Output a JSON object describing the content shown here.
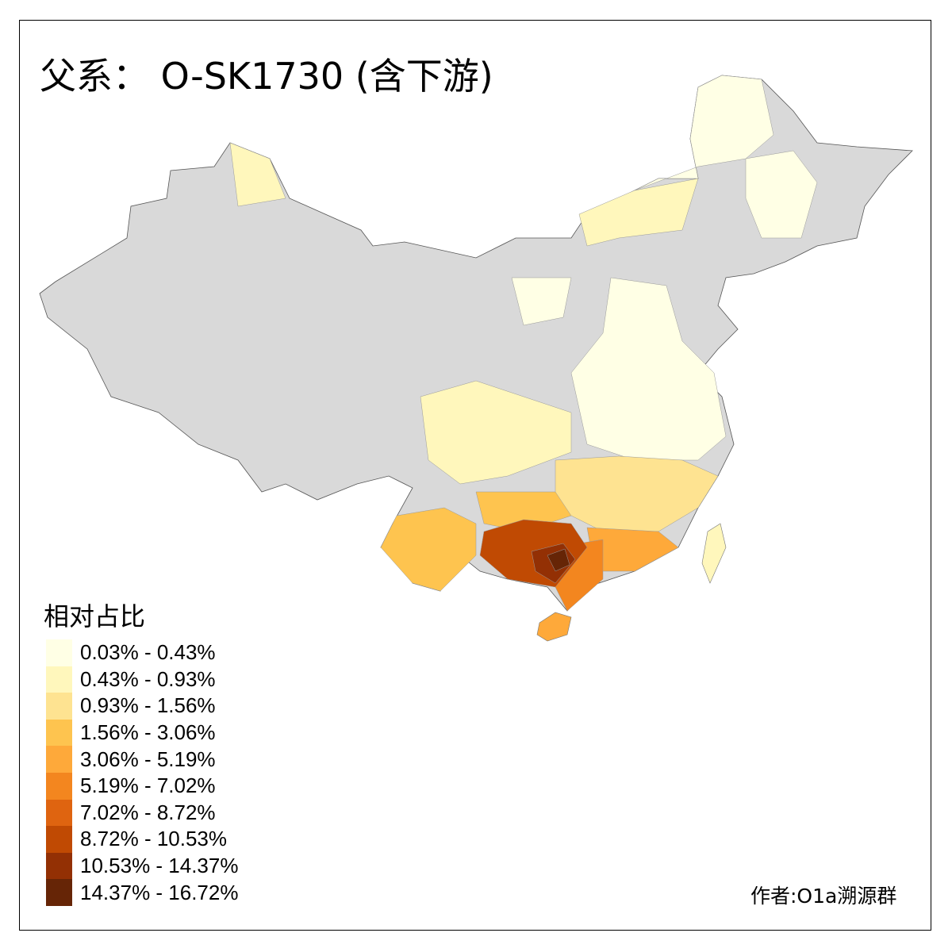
{
  "title": "父系： O-SK1730 (含下游)",
  "legend": {
    "title": "相对占比",
    "items": [
      {
        "label": "0.03% - 0.43%",
        "color": "#FFFFE5"
      },
      {
        "label": "0.43% - 0.93%",
        "color": "#FFF7BC"
      },
      {
        "label": "0.93% - 1.56%",
        "color": "#FEE391"
      },
      {
        "label": "1.56% - 3.06%",
        "color": "#FEC44F"
      },
      {
        "label": "3.06% - 5.19%",
        "color": "#FEA93A"
      },
      {
        "label": "5.19% - 7.02%",
        "color": "#F3861F"
      },
      {
        "label": "7.02% - 8.72%",
        "color": "#DF6410"
      },
      {
        "label": "8.72% - 10.53%",
        "color": "#C04A03"
      },
      {
        "label": "10.53% - 14.37%",
        "color": "#933004"
      },
      {
        "label": "14.37% - 16.72%",
        "color": "#662506"
      }
    ],
    "no_data_color": "#D9D9D9"
  },
  "credit": "作者:O1a溯源群"
}
